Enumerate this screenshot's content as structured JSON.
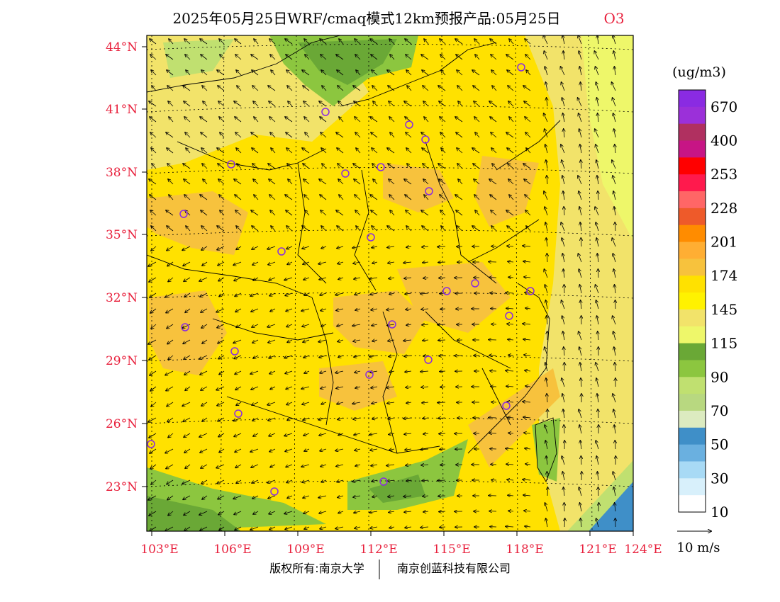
{
  "title": {
    "main": "2025年05月25日WRF/cmaq模式12km预报产品:05月25日",
    "species": "O3",
    "species_color": "#e8203c"
  },
  "lat_labels": [
    "44°N",
    "41°N",
    "38°N",
    "35°N",
    "32°N",
    "29°N",
    "26°N",
    "23°N"
  ],
  "lon_labels": [
    "103°E",
    "106°E",
    "109°E",
    "112°E",
    "115°E",
    "118°E",
    "121°E",
    "124°E"
  ],
  "axis_color": "#e8203c",
  "colorbar": {
    "unit": "(ug/m3)",
    "labels": [
      "670",
      "400",
      "253",
      "228",
      "201",
      "174",
      "145",
      "115",
      "90",
      "70",
      "50",
      "30",
      "10"
    ],
    "colors": [
      "#8a2be2",
      "#9b30d9",
      "#b03060",
      "#c71585",
      "#ff0000",
      "#ff1a4d",
      "#ff6666",
      "#ee5a2a",
      "#ff8c00",
      "#ffae33",
      "#f7c23d",
      "#ffe100",
      "#fff200",
      "#f2e36a",
      "#eef76a",
      "#6aa836",
      "#8cc63f",
      "#c0e070",
      "#b8d880",
      "#dcebc0",
      "#3f8fc8",
      "#6ab0e0",
      "#a8daf5",
      "#d8f0fb",
      "#ffffff"
    ]
  },
  "wind_scale": {
    "label": "10 m/s"
  },
  "credit": {
    "left": "版权所有:南京大学",
    "right": "南京创蓝科技有限公司"
  }
}
